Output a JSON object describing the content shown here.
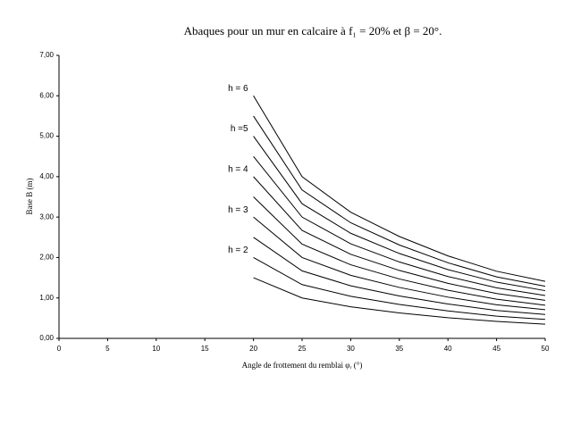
{
  "chart_data": {
    "type": "line",
    "title": "Abaques pour un mur en calcaire à f₁ = 20% et β = 20°.",
    "x_label": "Angle de frottement du remblai φᵣ (°)",
    "y_label": "Base B (m)",
    "x": [
      20,
      25,
      30,
      35,
      40,
      45,
      50
    ],
    "color": "#000000",
    "series": [
      {
        "name": "h = 6",
        "values": [
          6,
          4.0,
          3.12,
          2.52,
          2.04,
          1.66,
          1.41
        ]
      },
      {
        "name": null,
        "values": [
          5.5,
          3.67,
          2.86,
          2.31,
          1.87,
          1.52,
          1.29
        ]
      },
      {
        "name": "h =5",
        "values": [
          5,
          3.33,
          2.6,
          2.1,
          1.7,
          1.39,
          1.18
        ]
      },
      {
        "name": null,
        "values": [
          4.5,
          3.0,
          2.34,
          1.89,
          1.53,
          1.25,
          1.06
        ]
      },
      {
        "name": "h = 4",
        "values": [
          4,
          2.67,
          2.08,
          1.68,
          1.36,
          1.11,
          0.94
        ]
      },
      {
        "name": null,
        "values": [
          3.5,
          2.33,
          1.82,
          1.47,
          1.19,
          0.97,
          0.82
        ]
      },
      {
        "name": "h = 3",
        "values": [
          3,
          2.0,
          1.56,
          1.26,
          1.02,
          0.83,
          0.71
        ]
      },
      {
        "name": null,
        "values": [
          2.5,
          1.67,
          1.3,
          1.05,
          0.85,
          0.69,
          0.59
        ]
      },
      {
        "name": "h = 2",
        "values": [
          2,
          1.33,
          1.04,
          0.84,
          0.68,
          0.55,
          0.47
        ]
      },
      {
        "name": null,
        "values": [
          1.5,
          1.0,
          0.78,
          0.63,
          0.51,
          0.42,
          0.35
        ]
      }
    ],
    "xlim": [
      0,
      50
    ],
    "xticks": [
      0,
      5,
      10,
      15,
      20,
      25,
      30,
      35,
      40,
      45,
      50
    ],
    "ylim": [
      0,
      7
    ],
    "yticks": [
      {
        "value": 0,
        "label": "0,00"
      },
      {
        "value": 1,
        "label": "1,00"
      },
      {
        "value": 2,
        "label": "2,00"
      },
      {
        "value": 3,
        "label": "3,00"
      },
      {
        "value": 4,
        "label": "4,00"
      },
      {
        "value": 5,
        "label": "5,00"
      },
      {
        "value": 6,
        "label": "6,00"
      },
      {
        "value": 7,
        "label": "7,00"
      }
    ],
    "grid": false
  }
}
